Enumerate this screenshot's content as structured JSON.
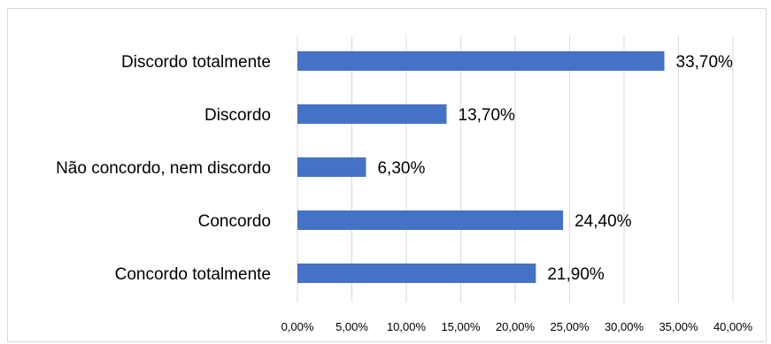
{
  "chart_data": {
    "type": "bar",
    "orientation": "horizontal",
    "title": "",
    "xlabel": "",
    "ylabel": "",
    "categories": [
      "Discordo totalmente",
      "Discordo",
      "Não concordo, nem discordo",
      "Concordo",
      "Concordo totalmente"
    ],
    "values": [
      33.7,
      13.7,
      6.3,
      24.4,
      21.9
    ],
    "value_labels": [
      "33,70%",
      "13,70%",
      "6,30%",
      "24,40%",
      "21,90%"
    ],
    "xlim": [
      0,
      40
    ],
    "x_ticks": [
      0,
      5,
      10,
      15,
      20,
      25,
      30,
      35,
      40
    ],
    "x_tick_labels": [
      "0,00%",
      "5,00%",
      "10,00%",
      "15,00%",
      "20,00%",
      "25,00%",
      "30,00%",
      "35,00%",
      "40,00%"
    ],
    "grid": true,
    "legend": "none",
    "colors": {
      "bar": "#4472c4",
      "grid": "#d9d9d9",
      "text": "#000000",
      "border": "#d9d9d9"
    }
  }
}
